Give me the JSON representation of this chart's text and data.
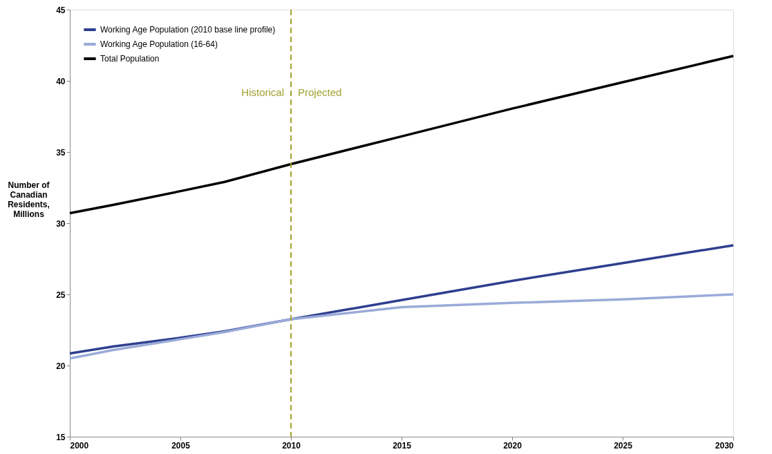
{
  "chart_data": {
    "type": "line",
    "ylabel": "Number of Canadian Residents, Millions",
    "x": [
      2000,
      2002,
      2005,
      2007,
      2010,
      2015,
      2020,
      2025,
      2030
    ],
    "series": [
      {
        "name": "Working Age Population (2010 base line profile)",
        "color": "#2e3f8f",
        "values": [
          20.85,
          21.35,
          21.95,
          22.4,
          23.25,
          24.6,
          25.95,
          27.2,
          28.45
        ]
      },
      {
        "name": "Working Age Population (16-64)",
        "color": "#9aabd9",
        "values": [
          20.5,
          21.1,
          21.85,
          22.35,
          23.25,
          24.1,
          24.4,
          24.65,
          25.0
        ]
      },
      {
        "name": "Total Population",
        "color": "#000000",
        "values": [
          30.7,
          31.3,
          32.25,
          32.9,
          34.15,
          36.1,
          38.05,
          39.9,
          41.75
        ]
      }
    ],
    "xlim": [
      2000,
      2030
    ],
    "xticks": [
      2000,
      2005,
      2010,
      2015,
      2020,
      2025,
      2030
    ],
    "ylim": [
      15,
      45
    ],
    "yticks": [
      15,
      20,
      25,
      30,
      35,
      40,
      45
    ],
    "ref_lines": [
      {
        "axis": "x",
        "value": 2010,
        "color": "#a0a030",
        "line_style": "dashed"
      }
    ],
    "annotations": [
      "Historical",
      "Projected"
    ],
    "grid": false,
    "legend": "top left"
  }
}
